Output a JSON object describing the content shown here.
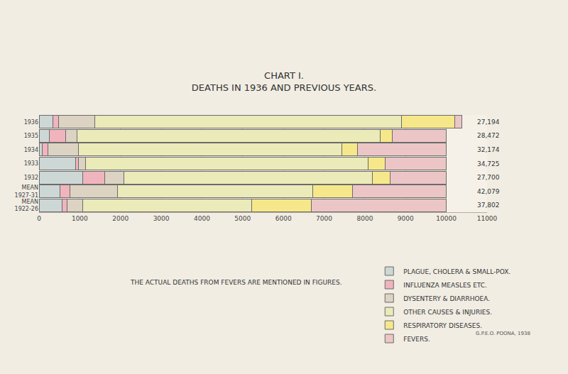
{
  "chart_data": {
    "type": "bar",
    "orientation": "horizontal",
    "stacked": true,
    "title": "CHART I.\nDEATHS IN 1936 AND PREVIOUS YEARS.",
    "categories": [
      "1936",
      "1935",
      "1934",
      "1933",
      "1932",
      "MEAN\n1927-31",
      "MEAN\n1922-26"
    ],
    "series": [
      {
        "name": "PLAGUE, CHOLERA & SMALL-POX.",
        "color": "#cdd8d6",
        "values": [
          340,
          255,
          85,
          900,
          1070,
          510,
          560
        ]
      },
      {
        "name": "INFLUENZA MEASLES ETC.",
        "color": "#f0b4bd",
        "values": [
          136,
          390,
          135,
          70,
          545,
          255,
          120
        ]
      },
      {
        "name": "DYSENTERY & DIARRHOEA.",
        "color": "#dcd3c2",
        "values": [
          884,
          290,
          750,
          170,
          475,
          1155,
          390
        ]
      },
      {
        "name": "OTHER CAUSES & INJURIES.",
        "color": "#ebeab9",
        "values": [
          7534,
          7450,
          6460,
          6940,
          6100,
          4795,
          4150
        ]
      },
      {
        "name": "RESPIRATORY DISEASES.",
        "color": "#f6e88a",
        "values": [
          1310,
          290,
          390,
          425,
          425,
          985,
          1460
        ]
      },
      {
        "name": "FEVERS.",
        "color": "#ecc6c6",
        "values": [
          170,
          1330,
          2180,
          1495,
          1380,
          2300,
          3320
        ]
      }
    ],
    "right_labels": [
      "27,194",
      "28,472",
      "32,174",
      "34,725",
      "27,700",
      "42,079",
      "37,802"
    ],
    "annotations": [
      "THE ACTUAL DEATHS FROM FEVERS ARE MENTIONED IN FIGURES.",
      "G.P.E.O. POONA, 1938"
    ],
    "xlim": [
      0,
      11000
    ],
    "xticks": [
      0,
      1000,
      2000,
      3000,
      4000,
      5000,
      6000,
      7000,
      8000,
      9000,
      10000,
      11000
    ],
    "grid": true,
    "legend": "bottom right"
  }
}
